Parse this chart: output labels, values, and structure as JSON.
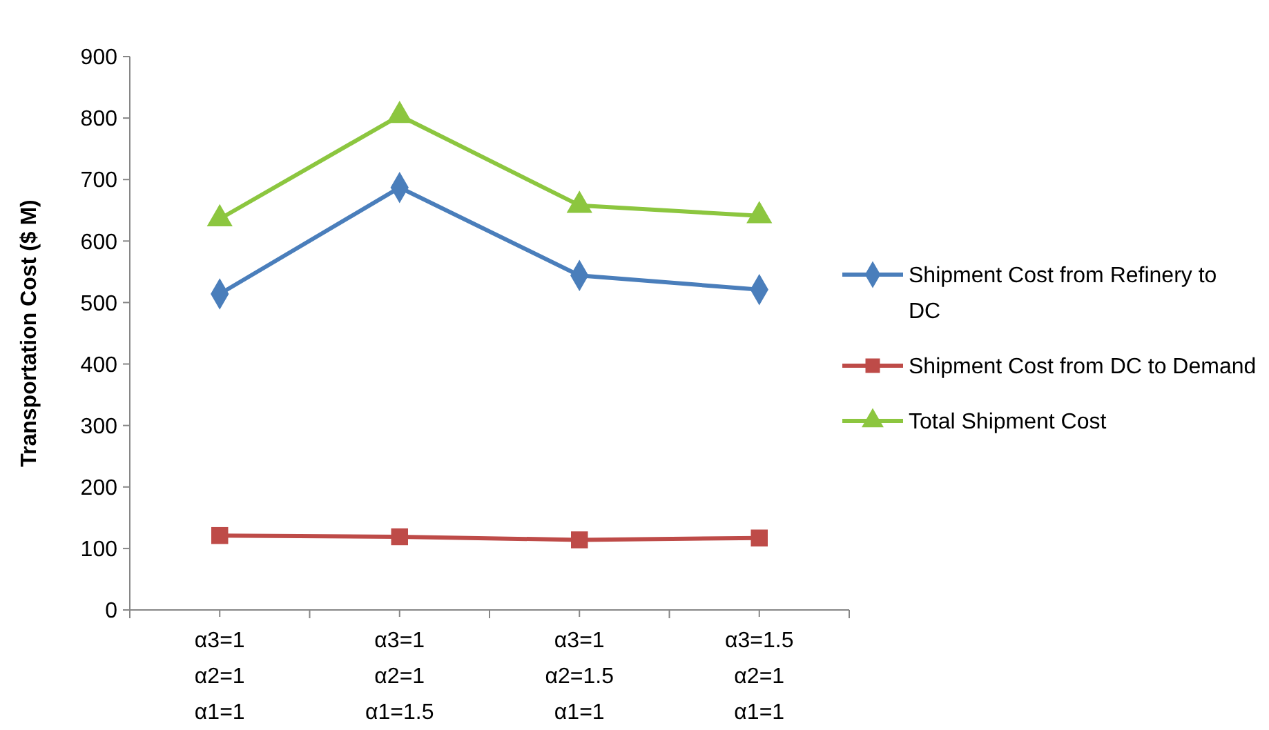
{
  "chart_data": {
    "type": "line",
    "ylabel": "Transportation Cost ($ M)",
    "categories": [
      "α3=1\nα2=1\nα1=1",
      "α3=1\nα2=1\nα1=1.5",
      "α3=1\nα2=1.5\nα1=1",
      "α3=1.5\nα2=1\nα1=1"
    ],
    "series": [
      {
        "name": "Shipment Cost from Refinery to DC",
        "color": "#4a7ebb",
        "marker": "diamond",
        "values": [
          514,
          687,
          544,
          521
        ]
      },
      {
        "name": "Shipment Cost from DC to Demand",
        "color": "#be4b48",
        "marker": "square",
        "values": [
          121,
          119,
          114,
          117
        ]
      },
      {
        "name": "Total Shipment Cost",
        "color": "#8cc63f",
        "marker": "triangle",
        "values": [
          636,
          804,
          658,
          641
        ]
      }
    ],
    "ylim": [
      0,
      900
    ],
    "yticks": [
      0,
      100,
      200,
      300,
      400,
      500,
      600,
      700,
      800,
      900
    ],
    "grid": false,
    "legend": "right"
  }
}
